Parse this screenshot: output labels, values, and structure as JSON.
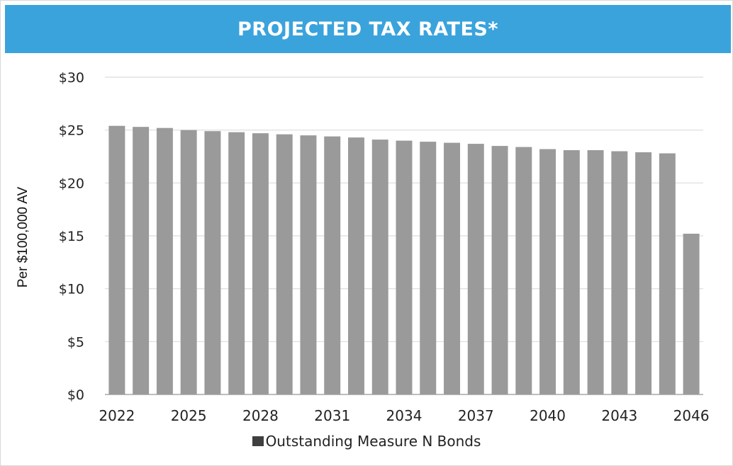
{
  "chart_data": {
    "type": "bar",
    "title": "PROJECTED TAX RATES*",
    "ylabel": "Per $100,000 AV",
    "xlabel": "",
    "ylim": [
      0,
      30
    ],
    "yticks": [
      "$30",
      "$25",
      "$20",
      "$15",
      "$10",
      "$5",
      "$0"
    ],
    "ytick_values": [
      30,
      25,
      20,
      15,
      10,
      5,
      0
    ],
    "x_tick_labels": [
      "2022",
      "2025",
      "2028",
      "2031",
      "2034",
      "2037",
      "2040",
      "2043",
      "2046"
    ],
    "categories": [
      "2022",
      "2023",
      "2024",
      "2025",
      "2026",
      "2027",
      "2028",
      "2029",
      "2030",
      "2031",
      "2032",
      "2033",
      "2034",
      "2035",
      "2036",
      "2037",
      "2038",
      "2039",
      "2040",
      "2041",
      "2042",
      "2043",
      "2044",
      "2045",
      "2046"
    ],
    "series": [
      {
        "name": "Outstanding Measure N Bonds",
        "values": [
          25.4,
          25.3,
          25.2,
          25.0,
          24.9,
          24.8,
          24.7,
          24.6,
          24.5,
          24.4,
          24.3,
          24.1,
          24.0,
          23.9,
          23.8,
          23.7,
          23.5,
          23.4,
          23.2,
          23.1,
          23.1,
          23.0,
          22.9,
          22.8,
          15.2
        ]
      }
    ],
    "grid": true,
    "legend_position": "bottom",
    "bar_color": "#9a9a9a",
    "grid_color": "#dcdcdc"
  }
}
